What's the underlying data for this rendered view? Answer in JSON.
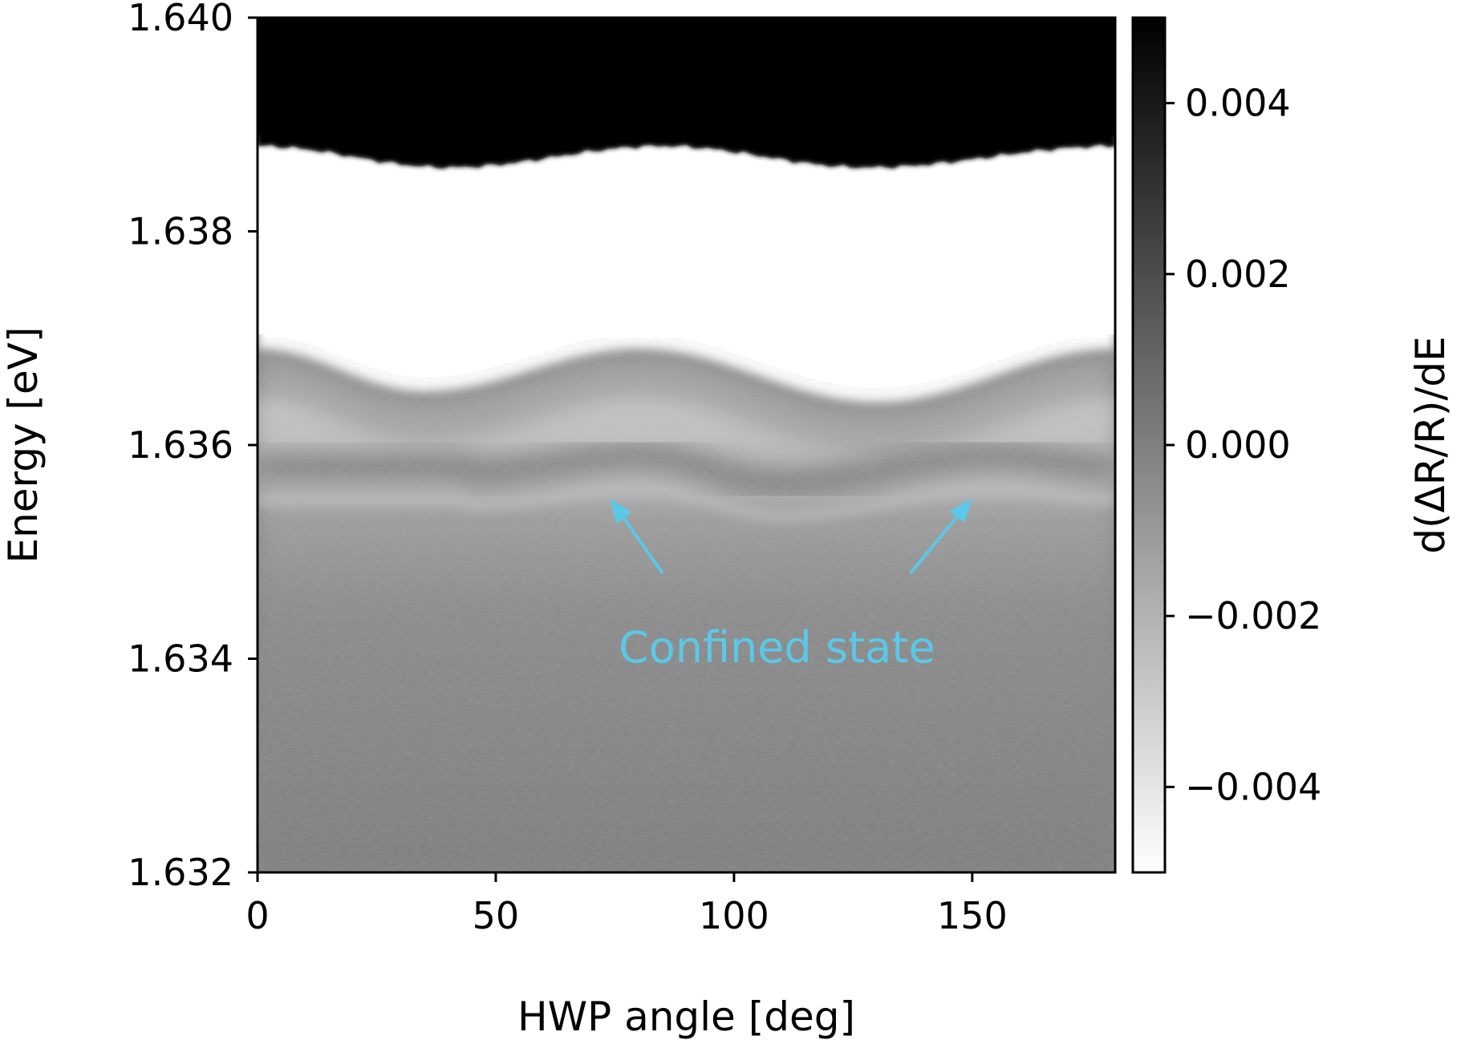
{
  "chart_data": {
    "type": "heatmap",
    "title": "",
    "xlabel": "HWP angle [deg]",
    "ylabel": "Energy [eV]",
    "xlim": [
      0,
      180
    ],
    "ylim": [
      1.632,
      1.64
    ],
    "xticks": [
      0,
      50,
      100,
      150
    ],
    "xtick_labels": [
      "0",
      "50",
      "100",
      "150"
    ],
    "yticks": [
      1.632,
      1.634,
      1.636,
      1.638,
      1.64
    ],
    "ytick_labels": [
      "1.632",
      "1.634",
      "1.636",
      "1.638",
      "1.640"
    ],
    "colorbar": {
      "label": "d(ΔR/R)/dE",
      "range": [
        -0.005,
        0.005
      ],
      "ticks": [
        -0.004,
        -0.002,
        0.0,
        0.002,
        0.004
      ],
      "tick_labels": [
        "−0.004",
        "−0.002",
        "0.000",
        "0.002",
        "0.004"
      ],
      "colormap": "gray_r"
    },
    "features": {
      "saturated_dark_upper_boundary": [
        {
          "x": 0,
          "y": 1.6388
        },
        {
          "x": 40,
          "y": 1.6386
        },
        {
          "x": 85,
          "y": 1.6388
        },
        {
          "x": 128,
          "y": 1.6386
        },
        {
          "x": 180,
          "y": 1.6388
        }
      ],
      "bright_region_lower_boundary": [
        {
          "x": 0,
          "y": 1.6369
        },
        {
          "x": 35,
          "y": 1.6365
        },
        {
          "x": 80,
          "y": 1.6369
        },
        {
          "x": 130,
          "y": 1.6364
        },
        {
          "x": 180,
          "y": 1.6369
        }
      ],
      "confined_state_band": [
        {
          "x": 45,
          "y": 1.63575
        },
        {
          "x": 80,
          "y": 1.6359
        },
        {
          "x": 110,
          "y": 1.63565
        },
        {
          "x": 155,
          "y": 1.6359
        },
        {
          "x": 180,
          "y": 1.6358
        }
      ]
    },
    "annotations": [
      {
        "text": "Confined state",
        "color": "#5bc8e8",
        "text_position": {
          "x": 109,
          "y": 1.6341
        },
        "arrows": [
          {
            "from": {
              "x": 85,
              "y": 1.6348
            },
            "to": {
              "x": 74,
              "y": 1.6355
            }
          },
          {
            "from": {
              "x": 137,
              "y": 1.6348
            },
            "to": {
              "x": 150,
              "y": 1.6355
            }
          }
        ]
      }
    ]
  }
}
